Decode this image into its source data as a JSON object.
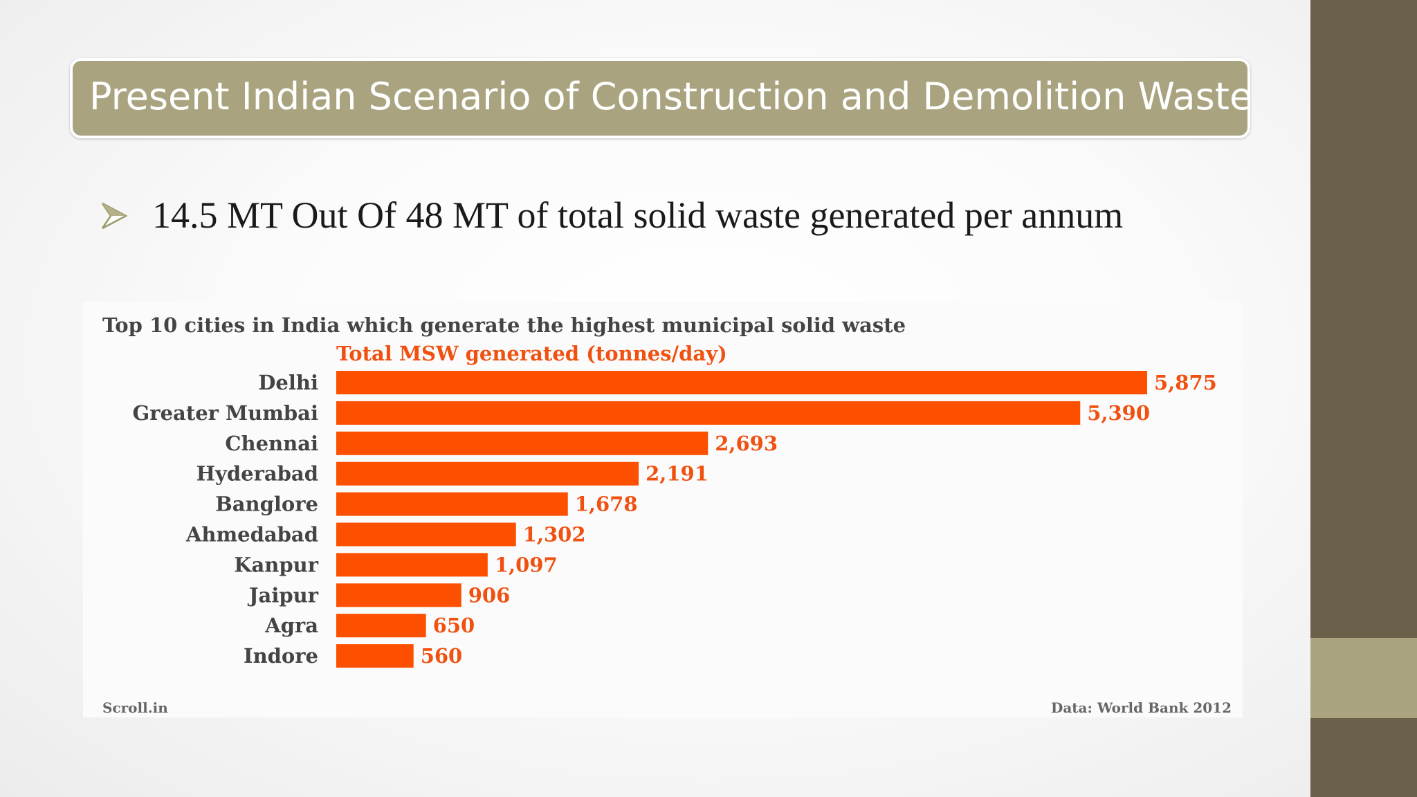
{
  "slide": {
    "title": "Present Indian Scenario of Construction and Demolition Waste",
    "bullet": "14.5 MT Out Of 48 MT of total solid waste generated per annum",
    "bullet_icon": "arrowhead-bullet-icon"
  },
  "colors": {
    "title_bar": "#a9a47f",
    "right_strip": "#6b604a",
    "bar": "#fc5000",
    "value_text": "#f05010"
  },
  "chart_data": {
    "type": "bar",
    "orientation": "horizontal",
    "title": "Top 10 cities in India which generate the highest municipal solid waste",
    "subtitle": "Total MSW generated (tonnes/day)",
    "categories": [
      "Delhi",
      "Greater Mumbai",
      "Chennai",
      "Hyderabad",
      "Banglore",
      "Ahmedabad",
      "Kanpur",
      "Jaipur",
      "Agra",
      "Indore"
    ],
    "values": [
      5875,
      5390,
      2693,
      2191,
      1678,
      1302,
      1097,
      906,
      650,
      560
    ],
    "value_labels": [
      "5,875",
      "5,390",
      "2,693",
      "2,191",
      "1,678",
      "1,302",
      "1,097",
      "906",
      "650",
      "560"
    ],
    "xlim": [
      0,
      5875
    ],
    "grid": false,
    "legend": "none",
    "source_left": "Scroll.in",
    "source_right": "Data: World Bank 2012"
  }
}
